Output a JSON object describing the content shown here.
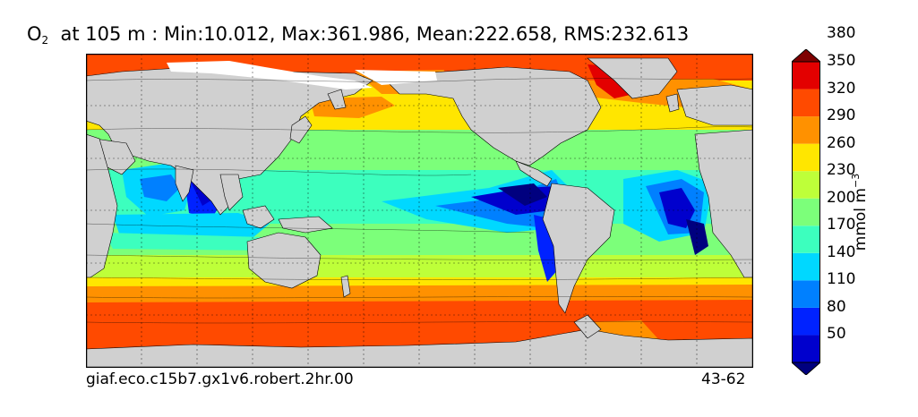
{
  "title": {
    "species": "O",
    "subscript": "2",
    "text": "at 105 m : Min:10.012, Max:361.986, Mean:222.658, RMS:232.613"
  },
  "footer": {
    "run_id": "giaf.eco.c15b7.gx1v6.robert.2hr.00",
    "years": "43-62"
  },
  "colorbar": {
    "units_main": "mmol m",
    "units_exp": "−3",
    "levels": [
      "50",
      "80",
      "110",
      "140",
      "170",
      "200",
      "230",
      "260",
      "290",
      "320",
      "350",
      "380"
    ],
    "colors": [
      "#00007f",
      "#0000cd",
      "#0022ff",
      "#0080ff",
      "#00d8ff",
      "#3cffbe",
      "#7cff7a",
      "#beff39",
      "#ffe600",
      "#ff9100",
      "#ff4a00",
      "#e30000",
      "#7f0000"
    ]
  },
  "chart_data": {
    "type": "heatmap",
    "title": "O2 at 105 m : Min:10.012, Max:361.986, Mean:222.658, RMS:232.613",
    "units": "mmol m^-3",
    "stats": {
      "min": 10.012,
      "max": 361.986,
      "mean": 222.658,
      "rms": 232.613
    },
    "colorbar_ticks": [
      50,
      80,
      110,
      140,
      170,
      200,
      230,
      260,
      290,
      320,
      350,
      380
    ],
    "extend": "both",
    "land_color": "#d0d0d0",
    "grid": true,
    "legend": "right"
  }
}
